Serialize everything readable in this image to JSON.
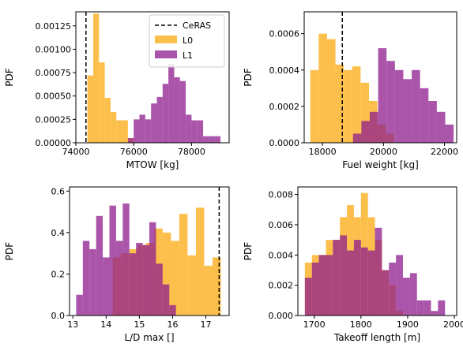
{
  "colors": {
    "L0": "#FDB42B",
    "L1": "#8E1C8E",
    "overlap": "#A82A55",
    "CeRAS": "#000000"
  },
  "legend": {
    "placement": "upper right of first panel",
    "entries": [
      "CeRAS",
      "L0",
      "L1"
    ]
  },
  "chart_data": [
    {
      "type": "histogram",
      "xlabel": "MTOW [kg]",
      "ylabel": "PDF",
      "xlim": [
        74000,
        79300
      ],
      "ylim": [
        0,
        0.0014
      ],
      "xticks": [
        74000,
        76000,
        78000
      ],
      "xtick_labels": [
        "74000",
        "76000",
        "78000"
      ],
      "yticks": [
        0,
        0.00025,
        0.0005,
        0.00075,
        0.001,
        0.00125
      ],
      "ytick_labels": [
        "0.00000",
        "0.00025",
        "0.00050",
        "0.00075",
        "0.00100",
        "0.00125"
      ],
      "ceras": 74350,
      "series": [
        {
          "name": "L0",
          "edges": [
            74400,
            74600,
            74800,
            75000,
            75200,
            75400,
            75600,
            75800,
            76000
          ],
          "values": [
            0.00072,
            0.00138,
            0.00086,
            0.00048,
            0.00033,
            0.00024,
            0.00024,
            5e-05
          ]
        },
        {
          "name": "L1",
          "edges": [
            75800,
            76000,
            76200,
            76400,
            76600,
            76800,
            77000,
            77200,
            77400,
            77600,
            77800,
            78000,
            78200,
            78400,
            78600,
            78800,
            79000
          ],
          "values": [
            5e-05,
            0.00025,
            0.0003,
            0.00025,
            0.00042,
            0.00049,
            0.00063,
            0.00084,
            0.0007,
            0.00066,
            0.0003,
            0.00024,
            0.00024,
            7e-05,
            7e-05,
            7e-05
          ]
        }
      ]
    },
    {
      "type": "histogram",
      "xlabel": "Fuel weight [kg]",
      "ylabel": "PDF",
      "xlim": [
        17400,
        22400
      ],
      "ylim": [
        0,
        0.00072
      ],
      "xticks": [
        18000,
        20000,
        22000
      ],
      "xtick_labels": [
        "18000",
        "20000",
        "22000"
      ],
      "yticks": [
        0,
        0.0002,
        0.0004,
        0.0006
      ],
      "ytick_labels": [
        "0.0000",
        "0.0002",
        "0.0004",
        "0.0006"
      ],
      "ceras": 18650,
      "series": [
        {
          "name": "L0",
          "edges": [
            17600,
            17875,
            18150,
            18425,
            18700,
            18975,
            19250,
            19525,
            19800,
            20075,
            20350
          ],
          "values": [
            0.0004,
            0.0006,
            0.00057,
            0.00043,
            0.0004,
            0.00042,
            0.00033,
            0.00023,
            0.0001,
            5e-05
          ]
        },
        {
          "name": "L1",
          "edges": [
            19000,
            19275,
            19550,
            19825,
            20100,
            20375,
            20650,
            20925,
            21200,
            21475,
            21750,
            22025,
            22300
          ],
          "values": [
            5e-05,
            0.00012,
            0.00017,
            0.00052,
            0.00045,
            0.0004,
            0.00035,
            0.0004,
            0.0003,
            0.00023,
            0.00017,
            0.0001
          ]
        }
      ]
    },
    {
      "type": "histogram",
      "xlabel": "L/D max []",
      "ylabel": "PDF",
      "xlim": [
        12.9,
        17.7
      ],
      "ylim": [
        0,
        0.62
      ],
      "xticks": [
        13,
        14,
        15,
        16,
        17
      ],
      "xtick_labels": [
        "13",
        "14",
        "15",
        "16",
        "17"
      ],
      "yticks": [
        0,
        0.2,
        0.4,
        0.6
      ],
      "ytick_labels": [
        "0.0",
        "0.2",
        "0.4",
        "0.6"
      ],
      "ceras": 17.4,
      "series": [
        {
          "name": "L0",
          "edges": [
            14.2,
            14.45,
            14.7,
            14.95,
            15.2,
            15.45,
            15.7,
            15.95,
            16.2,
            16.45,
            16.7,
            16.95,
            17.2,
            17.45
          ],
          "values": [
            0.28,
            0.3,
            0.32,
            0.34,
            0.35,
            0.42,
            0.4,
            0.36,
            0.49,
            0.29,
            0.52,
            0.24,
            0.28
          ]
        },
        {
          "name": "L1",
          "edges": [
            13.1,
            13.3,
            13.5,
            13.7,
            13.9,
            14.1,
            14.3,
            14.5,
            14.7,
            14.9,
            15.1,
            15.3,
            15.5,
            15.7,
            15.9,
            16.1
          ],
          "values": [
            0.1,
            0.36,
            0.32,
            0.48,
            0.28,
            0.53,
            0.36,
            0.54,
            0.3,
            0.35,
            0.34,
            0.45,
            0.25,
            0.15,
            0.05
          ]
        }
      ]
    },
    {
      "type": "histogram",
      "xlabel": "Takeoff length [m]",
      "ylabel": "PDF",
      "xlim": [
        1665,
        2005
      ],
      "ylim": [
        0,
        0.0085
      ],
      "xticks": [
        1700,
        1800,
        1900,
        2000
      ],
      "xtick_labels": [
        "1700",
        "1800",
        "1900",
        "2000"
      ],
      "yticks": [
        0,
        0.002,
        0.004,
        0.006,
        0.008
      ],
      "ytick_labels": [
        "0.000",
        "0.002",
        "0.004",
        "0.006",
        "0.008"
      ],
      "ceras": null,
      "series": [
        {
          "name": "L0",
          "edges": [
            1680,
            1695,
            1710,
            1725,
            1740,
            1755,
            1770,
            1785,
            1800,
            1815,
            1830,
            1845,
            1860,
            1875,
            1890
          ],
          "values": [
            0.0035,
            0.004,
            0.004,
            0.005,
            0.005,
            0.0065,
            0.0073,
            0.0065,
            0.0081,
            0.0065,
            0.005,
            0.003,
            0.002,
            0.0003
          ]
        },
        {
          "name": "L1",
          "edges": [
            1680,
            1695,
            1710,
            1725,
            1740,
            1755,
            1770,
            1785,
            1800,
            1815,
            1830,
            1845,
            1860,
            1875,
            1890,
            1905,
            1920,
            1935,
            1950,
            1965,
            1980
          ],
          "values": [
            0.0025,
            0.0035,
            0.004,
            0.004,
            0.005,
            0.0053,
            0.0043,
            0.005,
            0.0045,
            0.0043,
            0.0058,
            0.003,
            0.0035,
            0.004,
            0.0025,
            0.0028,
            0.001,
            0.001,
            0.0003,
            0.001
          ]
        }
      ]
    }
  ]
}
